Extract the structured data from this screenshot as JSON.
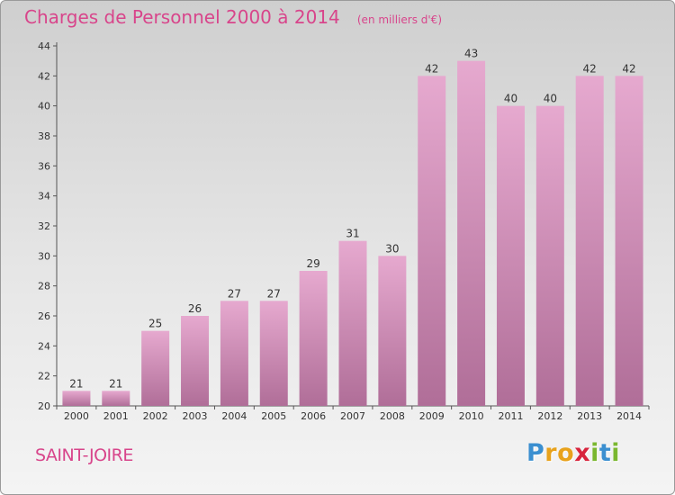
{
  "header": {
    "title": "Charges de Personnel 2000 à 2014",
    "subtitle": "(en milliers d'€)"
  },
  "footer": {
    "commune": "SAINT-JOIRE",
    "logo_letters": [
      "P",
      "r",
      "o",
      "x",
      "i",
      "t",
      "i"
    ],
    "logo_colors": [
      "#3b8fd0",
      "#e8a21c",
      "#e8a21c",
      "#d8243c",
      "#7ab72f",
      "#3b8fd0",
      "#7ab72f"
    ]
  },
  "colors": {
    "bar_top": "#e6a9cf",
    "bar_bottom": "#b06e98",
    "title": "#d8458b",
    "text": "#333333"
  },
  "chart_data": {
    "type": "bar",
    "title": "Charges de Personnel 2000 à 2014",
    "subtitle": "(en milliers d'€)",
    "xlabel": "",
    "ylabel": "",
    "categories": [
      "2000",
      "2001",
      "2002",
      "2003",
      "2004",
      "2005",
      "2006",
      "2007",
      "2008",
      "2009",
      "2010",
      "2011",
      "2012",
      "2013",
      "2014"
    ],
    "values": [
      21,
      21,
      25,
      26,
      27,
      27,
      29,
      31,
      30,
      42,
      43,
      40,
      40,
      42,
      42
    ],
    "ylim": [
      20,
      44
    ],
    "yticks": [
      20,
      22,
      24,
      26,
      28,
      30,
      32,
      34,
      36,
      38,
      40,
      42,
      44
    ],
    "grid": false,
    "legend": "none"
  }
}
